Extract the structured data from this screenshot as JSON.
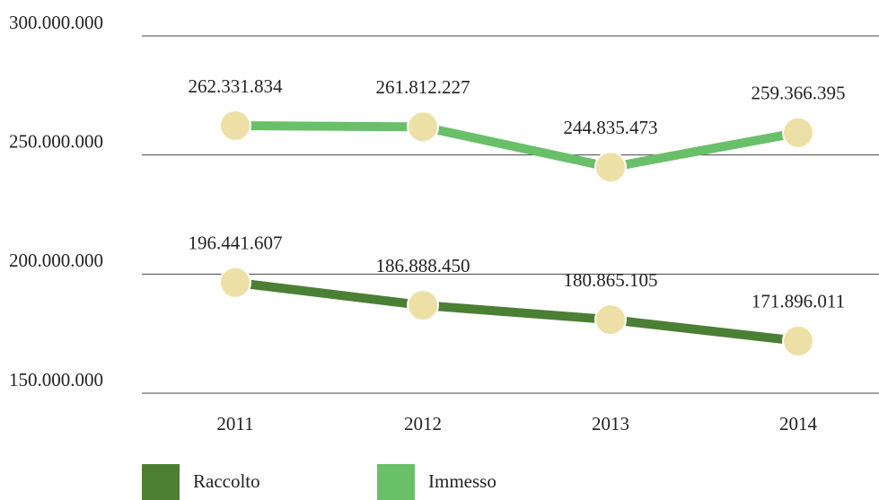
{
  "chart_data": {
    "type": "line",
    "categories": [
      "2011",
      "2012",
      "2013",
      "2014"
    ],
    "series": [
      {
        "name": "Raccolto",
        "color": "#4b7f34",
        "values": [
          196441607,
          186888450,
          180865105,
          171896011
        ],
        "value_labels": [
          "196.441.607",
          "186.888.450",
          "180.865.105",
          "171.896.011"
        ]
      },
      {
        "name": "Immesso",
        "color": "#6abf69",
        "values": [
          262331834,
          261812227,
          244835473,
          259366395
        ],
        "value_labels": [
          "262.331.834",
          "261.812.227",
          "244.835.473",
          "259.366.395"
        ]
      }
    ],
    "marker_color": "#ede0a6",
    "ylim": [
      150000000,
      300000000
    ],
    "yticks": [
      {
        "value": 150000000,
        "label": "150.000.000"
      },
      {
        "value": 200000000,
        "label": "200.000.000"
      },
      {
        "value": 250000000,
        "label": "250.000.000"
      },
      {
        "value": 300000000,
        "label": "300.000.000"
      }
    ],
    "grid": true
  }
}
